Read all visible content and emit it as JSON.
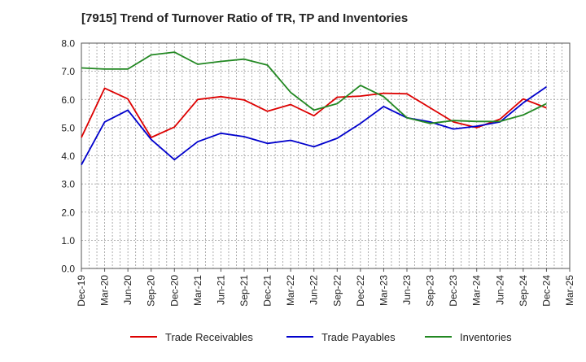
{
  "chart_data": {
    "type": "line",
    "title": "[7915]  Trend of Turnover Ratio of TR, TP and Inventories",
    "xlabel": "",
    "ylabel": "",
    "ylim": [
      0,
      8
    ],
    "yticks": [
      "0.0",
      "1.0",
      "2.0",
      "3.0",
      "4.0",
      "5.0",
      "6.0",
      "7.0",
      "8.0"
    ],
    "x_tick_labels": [
      "Dec-19",
      "Mar-20",
      "Jun-20",
      "Sep-20",
      "Dec-20",
      "Mar-21",
      "Jun-21",
      "Sep-21",
      "Dec-21",
      "Mar-22",
      "Jun-22",
      "Sep-22",
      "Dec-22",
      "Mar-23",
      "Jun-23",
      "Sep-23",
      "Dec-23",
      "Mar-24",
      "Jun-24",
      "Sep-24",
      "Dec-24",
      "Mar-25"
    ],
    "x": [
      "2019-12",
      "2020-03",
      "2020-06",
      "2020-09",
      "2020-12",
      "2021-03",
      "2021-06",
      "2021-09",
      "2021-12",
      "2022-03",
      "2022-06",
      "2022-09",
      "2022-12",
      "2023-03",
      "2023-06",
      "2023-09",
      "2023-12",
      "2024-03",
      "2024-06",
      "2024-09",
      "2024-12"
    ],
    "grid": true,
    "legend_position": "bottom",
    "series": [
      {
        "name": "Trade Receivables",
        "color": "#dd0000",
        "values": [
          4.65,
          6.4,
          6.02,
          4.65,
          5.02,
          6.0,
          6.1,
          5.98,
          5.58,
          5.82,
          5.42,
          6.08,
          6.12,
          6.22,
          6.2,
          5.7,
          5.2,
          5.0,
          5.3,
          6.02,
          5.7
        ]
      },
      {
        "name": "Trade Payables",
        "color": "#0000cc",
        "values": [
          3.68,
          5.2,
          5.62,
          4.58,
          3.86,
          4.5,
          4.8,
          4.68,
          4.44,
          4.55,
          4.32,
          4.62,
          5.15,
          5.75,
          5.35,
          5.2,
          4.95,
          5.05,
          5.2,
          5.88,
          6.45
        ]
      },
      {
        "name": "Inventories",
        "color": "#228822",
        "values": [
          7.12,
          7.08,
          7.08,
          7.58,
          7.68,
          7.25,
          7.35,
          7.43,
          7.22,
          6.25,
          5.62,
          5.85,
          6.5,
          6.1,
          5.35,
          5.15,
          5.25,
          5.22,
          5.22,
          5.45,
          5.85
        ]
      }
    ]
  }
}
